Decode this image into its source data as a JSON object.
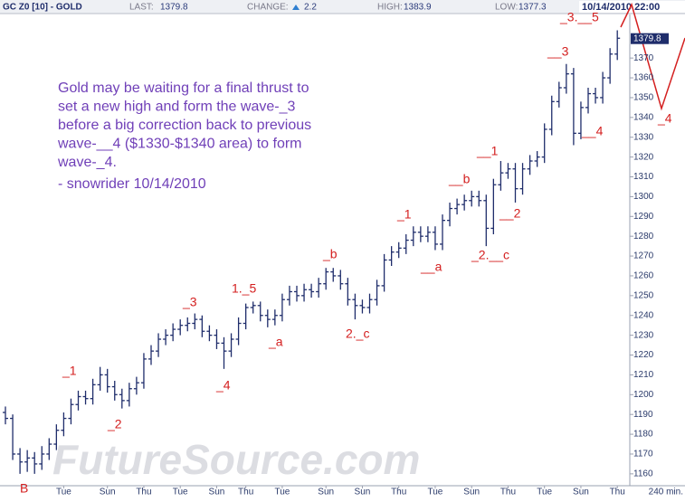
{
  "chart_data": {
    "type": "ohlc",
    "header": {
      "symbol": "GC Z0 [10] - GOLD",
      "last_label": "LAST:",
      "last": "1379.8",
      "change_label": "CHANGE:",
      "change": "2.2",
      "high_label": "HIGH:",
      "high": "1383.9",
      "low_label": "LOW:",
      "low": "1377.3",
      "datetime": "10/14/2010 22:00"
    },
    "note_lines": [
      "Gold may be waiting for a final thrust to",
      "set a new high and form the wave-_3",
      "before a big correction back to previous",
      "wave-__4 ($1330-$1340 area) to form",
      "wave-_4."
    ],
    "note_signature": "- snowrider  10/14/2010",
    "watermark": "FutureSource.com",
    "annotations": [
      "B",
      "_1",
      "_2",
      "_3",
      "1._5",
      "_4",
      "_a",
      "_b",
      "2._c",
      "_1",
      "__a",
      "__b",
      "_2.__c",
      "__1",
      "__2",
      "__3",
      "__4",
      "_3.__5",
      "_4"
    ],
    "x_unit": "240 min.",
    "color": "#1f2d6b",
    "annotation_color": "#d42020",
    "note_color": "#7040b8",
    "categories": [
      null,
      null,
      null,
      null,
      null,
      null,
      null,
      null,
      "Tue",
      null,
      null,
      null,
      null,
      null,
      "Sun",
      null,
      null,
      null,
      null,
      "Thu",
      null,
      null,
      null,
      null,
      "Tue",
      null,
      null,
      null,
      null,
      "Sun",
      null,
      null,
      null,
      "Thu",
      null,
      null,
      null,
      null,
      "Tue",
      null,
      null,
      null,
      null,
      null,
      "Sun",
      null,
      null,
      null,
      null,
      "Sun",
      null,
      null,
      null,
      null,
      "Thu",
      null,
      null,
      null,
      null,
      "Tue",
      null,
      null,
      null,
      null,
      "Sun",
      null,
      null,
      null,
      null,
      "Thu",
      null,
      null,
      null,
      null,
      "Tue",
      null,
      null,
      null,
      null,
      "Sun",
      null,
      null,
      null,
      null,
      "Thu"
    ],
    "open": [
      1191,
      1188,
      1170,
      1166,
      1168,
      1165,
      1170,
      1175,
      1182,
      1188,
      1195,
      1199,
      1198,
      1205,
      1210,
      1204,
      1200,
      1197,
      1203,
      1206,
      1218,
      1222,
      1228,
      1230,
      1233,
      1235,
      1236,
      1238,
      1232,
      1230,
      1226,
      1222,
      1228,
      1236,
      1244,
      1245,
      1240,
      1238,
      1240,
      1248,
      1252,
      1250,
      1253,
      1252,
      1256,
      1262,
      1260,
      1256,
      1248,
      1245,
      1244,
      1248,
      1255,
      1268,
      1272,
      1274,
      1278,
      1282,
      1280,
      1282,
      1276,
      1288,
      1294,
      1296,
      1298,
      1300,
      1298,
      1284,
      1306,
      1312,
      1314,
      1304,
      1314,
      1318,
      1320,
      1334,
      1348,
      1355,
      1362,
      1332,
      1345,
      1352,
      1350,
      1360,
      1372
    ],
    "high": [
      1194,
      1190,
      1173,
      1172,
      1171,
      1174,
      1178,
      1185,
      1191,
      1198,
      1202,
      1202,
      1208,
      1214,
      1213,
      1207,
      1203,
      1206,
      1209,
      1221,
      1225,
      1231,
      1233,
      1236,
      1238,
      1239,
      1241,
      1240,
      1235,
      1233,
      1229,
      1231,
      1239,
      1246,
      1247,
      1247,
      1243,
      1243,
      1251,
      1255,
      1255,
      1256,
      1256,
      1259,
      1264,
      1264,
      1263,
      1259,
      1251,
      1248,
      1251,
      1258,
      1271,
      1275,
      1277,
      1281,
      1285,
      1285,
      1285,
      1285,
      1291,
      1297,
      1299,
      1301,
      1303,
      1303,
      1301,
      1309,
      1318,
      1317,
      1317,
      1317,
      1321,
      1323,
      1337,
      1351,
      1358,
      1367,
      1365,
      1348,
      1355,
      1355,
      1363,
      1375,
      1384
    ],
    "low": [
      1185,
      1167,
      1160,
      1161,
      1160,
      1162,
      1167,
      1172,
      1179,
      1185,
      1192,
      1195,
      1195,
      1202,
      1201,
      1197,
      1193,
      1194,
      1200,
      1203,
      1215,
      1219,
      1225,
      1227,
      1230,
      1232,
      1233,
      1229,
      1227,
      1223,
      1213,
      1219,
      1225,
      1233,
      1241,
      1237,
      1234,
      1235,
      1237,
      1245,
      1247,
      1247,
      1249,
      1249,
      1253,
      1257,
      1253,
      1245,
      1238,
      1241,
      1241,
      1245,
      1252,
      1265,
      1269,
      1271,
      1275,
      1277,
      1277,
      1273,
      1273,
      1285,
      1291,
      1293,
      1295,
      1295,
      1275,
      1281,
      1303,
      1309,
      1297,
      1301,
      1311,
      1315,
      1317,
      1331,
      1345,
      1352,
      1326,
      1329,
      1342,
      1347,
      1347,
      1357,
      1369
    ],
    "close": [
      1188,
      1170,
      1166,
      1168,
      1165,
      1170,
      1175,
      1182,
      1188,
      1195,
      1199,
      1198,
      1205,
      1210,
      1204,
      1200,
      1197,
      1203,
      1206,
      1218,
      1222,
      1228,
      1230,
      1233,
      1235,
      1236,
      1238,
      1232,
      1230,
      1226,
      1222,
      1228,
      1236,
      1244,
      1245,
      1240,
      1238,
      1240,
      1248,
      1252,
      1250,
      1253,
      1252,
      1256,
      1262,
      1260,
      1256,
      1248,
      1245,
      1244,
      1248,
      1255,
      1268,
      1272,
      1274,
      1278,
      1282,
      1280,
      1282,
      1276,
      1288,
      1294,
      1296,
      1298,
      1300,
      1298,
      1284,
      1306,
      1312,
      1314,
      1304,
      1314,
      1318,
      1320,
      1334,
      1348,
      1355,
      1362,
      1332,
      1345,
      1352,
      1350,
      1360,
      1372,
      1380
    ],
    "last_marker": {
      "value": 1379.8,
      "label": "1379.8"
    },
    "ylim": [
      1154,
      1392
    ],
    "yticks": [
      1160,
      1170,
      1180,
      1190,
      1200,
      1210,
      1220,
      1230,
      1240,
      1250,
      1260,
      1270,
      1280,
      1290,
      1300,
      1310,
      1320,
      1330,
      1340,
      1350,
      1360,
      1370
    ],
    "grid": false
  }
}
